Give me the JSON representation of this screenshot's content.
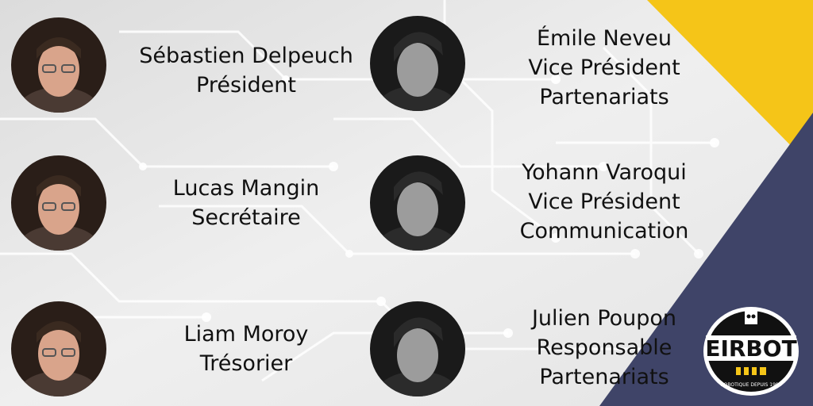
{
  "members": [
    {
      "name": "Sébastien Delpeuch",
      "lines": [
        "Président"
      ]
    },
    {
      "name": "Émile Neveu",
      "lines": [
        "Vice Président",
        "Partenariats"
      ]
    },
    {
      "name": "Lucas Mangin",
      "lines": [
        "Secrétaire"
      ]
    },
    {
      "name": "Yohann Varoqui",
      "lines": [
        "Vice Président",
        "Communication"
      ]
    },
    {
      "name": "Liam Moroy",
      "lines": [
        "Trésorier"
      ]
    },
    {
      "name": "Julien Poupon",
      "lines": [
        "Responsable",
        "Partenariats"
      ]
    }
  ],
  "logo": {
    "text": "EIRBOT",
    "tagline": "ROBOTIQUE DEPUIS 1993"
  },
  "colors": {
    "accent_yellow": "#f5c518",
    "accent_navy": "#3f4468",
    "background": "#e6e6e6"
  }
}
